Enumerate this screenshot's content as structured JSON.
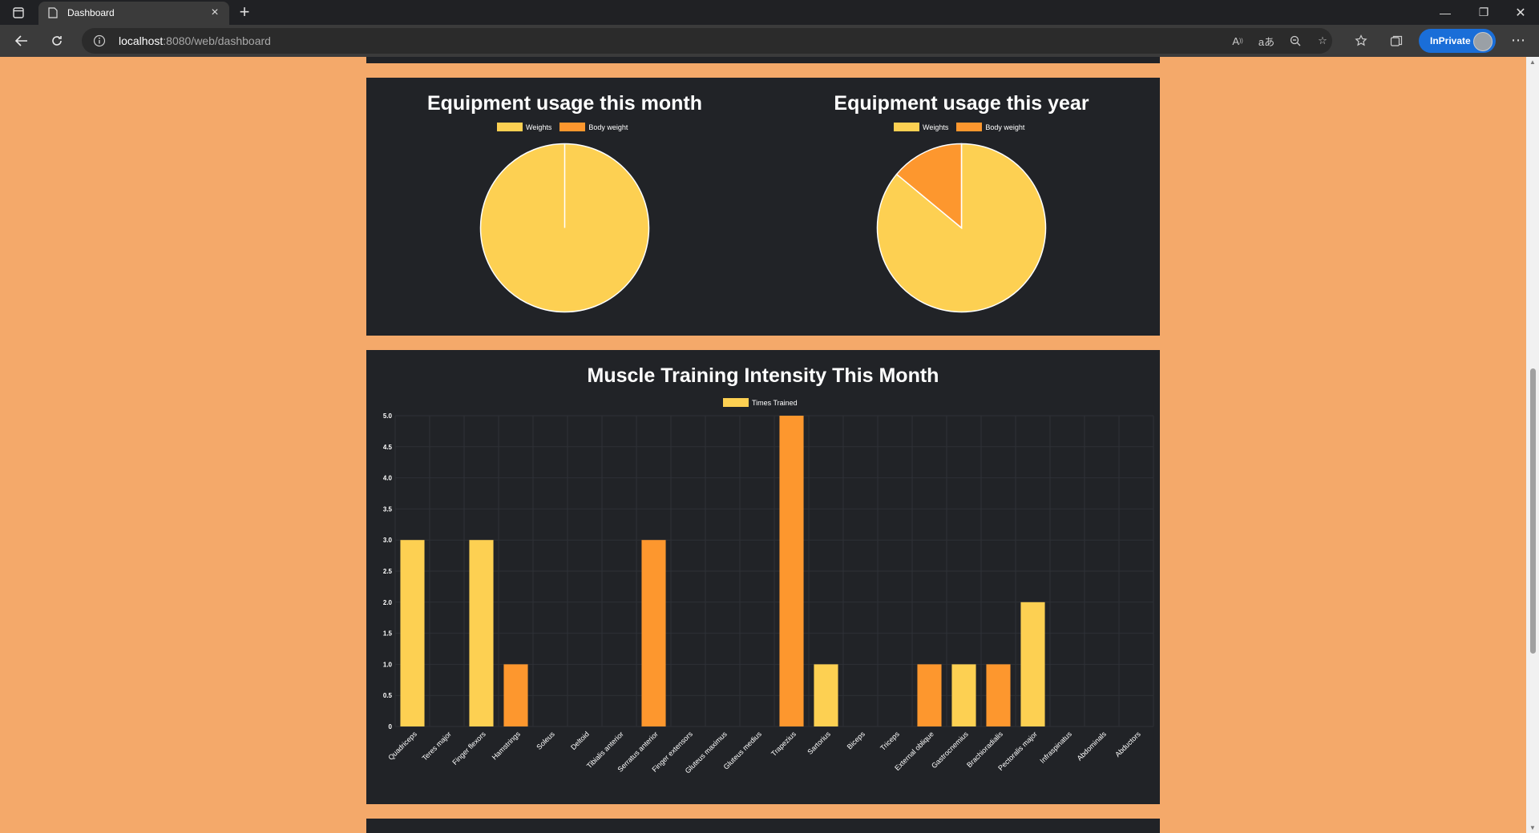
{
  "browser": {
    "tab_title": "Dashboard",
    "url_host": "localhost",
    "url_path": ":8080/web/dashboard",
    "inprivate_label": "InPrivate"
  },
  "colors": {
    "page_bg": "#f4a96a",
    "panel_bg": "#212327",
    "series_yellow": "#fdd052",
    "series_orange": "#fd972e"
  },
  "month_pie": {
    "title": "Equipment usage this month",
    "legend": [
      "Weights",
      "Body weight"
    ],
    "chart_data": {
      "type": "pie",
      "labels": [
        "Weights",
        "Body weight"
      ],
      "values": [
        100,
        0
      ]
    }
  },
  "year_pie": {
    "title": "Equipment usage this year",
    "legend": [
      "Weights",
      "Body weight"
    ],
    "chart_data": {
      "type": "pie",
      "labels": [
        "Weights",
        "Body weight"
      ],
      "values": [
        86,
        14
      ]
    }
  },
  "bar_chart": {
    "title": "Muscle Training Intensity This Month",
    "legend_label": "Times Trained",
    "chart_data": {
      "type": "bar",
      "categories": [
        "Quadriceps",
        "Teres major",
        "Finger flexors",
        "Hamstrings",
        "Soleus",
        "Deltoid",
        "Tibialis anterior",
        "Serratus anterior",
        "Finger extensors",
        "Gluteus maximus",
        "Gluteus medius",
        "Trapezius",
        "Sartorius",
        "Biceps",
        "Triceps",
        "External oblique",
        "Gastrocnemius",
        "Brachioradialis",
        "Pectoralis major",
        "Infraspinatus",
        "Abdominals",
        "Abductors"
      ],
      "values": [
        3,
        0,
        3,
        1,
        0,
        0,
        0,
        3,
        0,
        0,
        0,
        5,
        1,
        0,
        0,
        1,
        1,
        1,
        2,
        0,
        0,
        0
      ],
      "ylim": [
        0,
        5
      ],
      "yticks": [
        "0",
        "0.5",
        "1.0",
        "1.5",
        "2.0",
        "2.5",
        "3.0",
        "3.5",
        "4.0",
        "4.5",
        "5.0"
      ]
    }
  }
}
